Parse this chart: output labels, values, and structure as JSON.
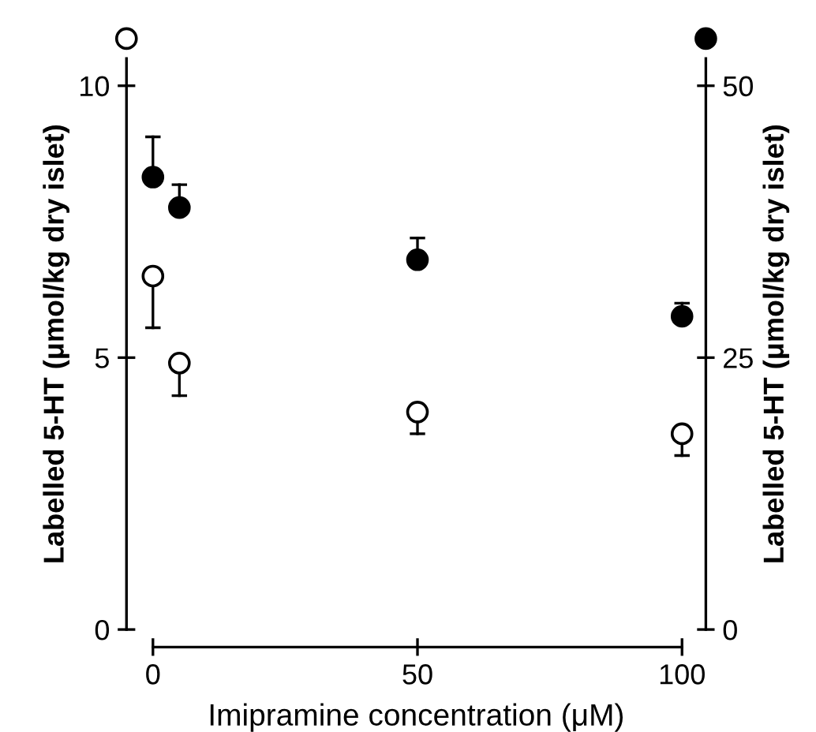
{
  "chart_data": {
    "type": "scatter",
    "xlabel": "Imipramine concentration (μM)",
    "ylabel": "Labelled 5-HT (μmol/kg dry islet)",
    "y2label": "Labelled 5-HT (μmol/kg dry islet)",
    "x": [
      0,
      5,
      50,
      100
    ],
    "series": [
      {
        "color": "#000000",
        "axis": "y",
        "values": [
          6.5,
          4.9,
          4.0,
          3.6
        ],
        "errors": [
          [
            5.55,
            6.5
          ],
          [
            4.3,
            4.9
          ],
          [
            3.6,
            4.0
          ],
          [
            3.2,
            3.6
          ]
        ]
      },
      {
        "color": "#000000",
        "axis": "y2",
        "values": [
          41.6,
          38.8,
          34.0,
          28.8
        ],
        "errors": [
          [
            41.6,
            45.3
          ],
          [
            38.8,
            40.9
          ],
          [
            34.0,
            36.0
          ],
          [
            28.8,
            30.0
          ]
        ]
      }
    ],
    "xlim": [
      -5,
      104.5
    ],
    "xticks": [
      0,
      50,
      100
    ],
    "ylim": [
      0,
      10.5
    ],
    "yticks": [
      0,
      5,
      10
    ],
    "y2lim": [
      0,
      52.5
    ],
    "y2ticks": [
      0,
      25,
      50
    ],
    "marker": "circle",
    "grid": false,
    "legend": false
  }
}
